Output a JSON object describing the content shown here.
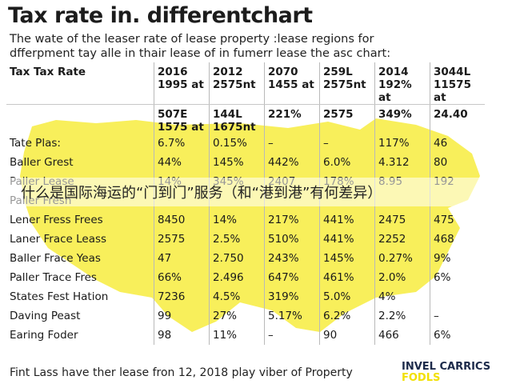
{
  "title": "Tax rate in. differentchart",
  "subtitle": [
    "The wate of the leaser rate of lease рroperty :lease regions for",
    "dfferpment tay alle in thair lease of in fumerr lease the asc chart:"
  ],
  "table": {
    "header": [
      "Tax Tax Rate",
      "2016\n1995 at",
      "2012\n2575nt",
      "2070\n1455 at",
      "259L\n2575nt",
      "2014\n192% at",
      "3044L\n11575 at"
    ],
    "header2": [
      "",
      "507E\n1575 at",
      "144L\n1675nt",
      "221%",
      "2575",
      "349%",
      "24.40"
    ],
    "rows": [
      [
        "Tate Plas:",
        "6.7%",
        "0.15%",
        "–",
        "–",
        "117%",
        "46"
      ],
      [
        "Baller Grest",
        "44%",
        "145%",
        "442%",
        "6.0%",
        "4.312",
        "80"
      ],
      [
        "Paller Lease",
        "14%",
        "345%",
        "2407",
        "178%",
        "8.95",
        "192"
      ],
      [
        "Paller Fresn",
        "",
        "",
        "",
        "",
        "",
        ""
      ],
      [
        "Lener Fress Frees",
        "8450",
        "14%",
        "217%",
        "441%",
        "2475",
        "475"
      ],
      [
        "Laner Frace Leass",
        "2575",
        "2.5%",
        "510%",
        "441%",
        "2252",
        "468"
      ],
      [
        "Baller Frace Yeas",
        "47",
        "2.750",
        "243%",
        "145%",
        "0.27%",
        "9%"
      ],
      [
        "Paller Trace Fres",
        "66%",
        "2.496",
        "647%",
        "461%",
        "2.0%",
        "6%"
      ],
      [
        "States Fest Hation",
        "7236",
        "4.5%",
        "319%",
        "5.0%",
        "4%",
        ""
      ],
      [
        "Daving Peast",
        "99",
        "27%",
        "5.17%",
        "6.2%",
        "2.2%",
        "–"
      ],
      [
        "Earing Foder",
        "98",
        "11%",
        "–",
        "90",
        "466",
        "6%"
      ]
    ]
  },
  "overlay_caption": "什么是国际海运的“门到门”服务（和“港到港”有何差异）",
  "footer": "Fint Lass have ther lease fron 12, 2018 play viber of Property",
  "brand": {
    "line1": "INVEL CARRICS",
    "line2": "FODLS"
  },
  "colors": {
    "map": "#f7ec3e",
    "text": "#1a1a1a",
    "grid": "#c7c7c7"
  }
}
